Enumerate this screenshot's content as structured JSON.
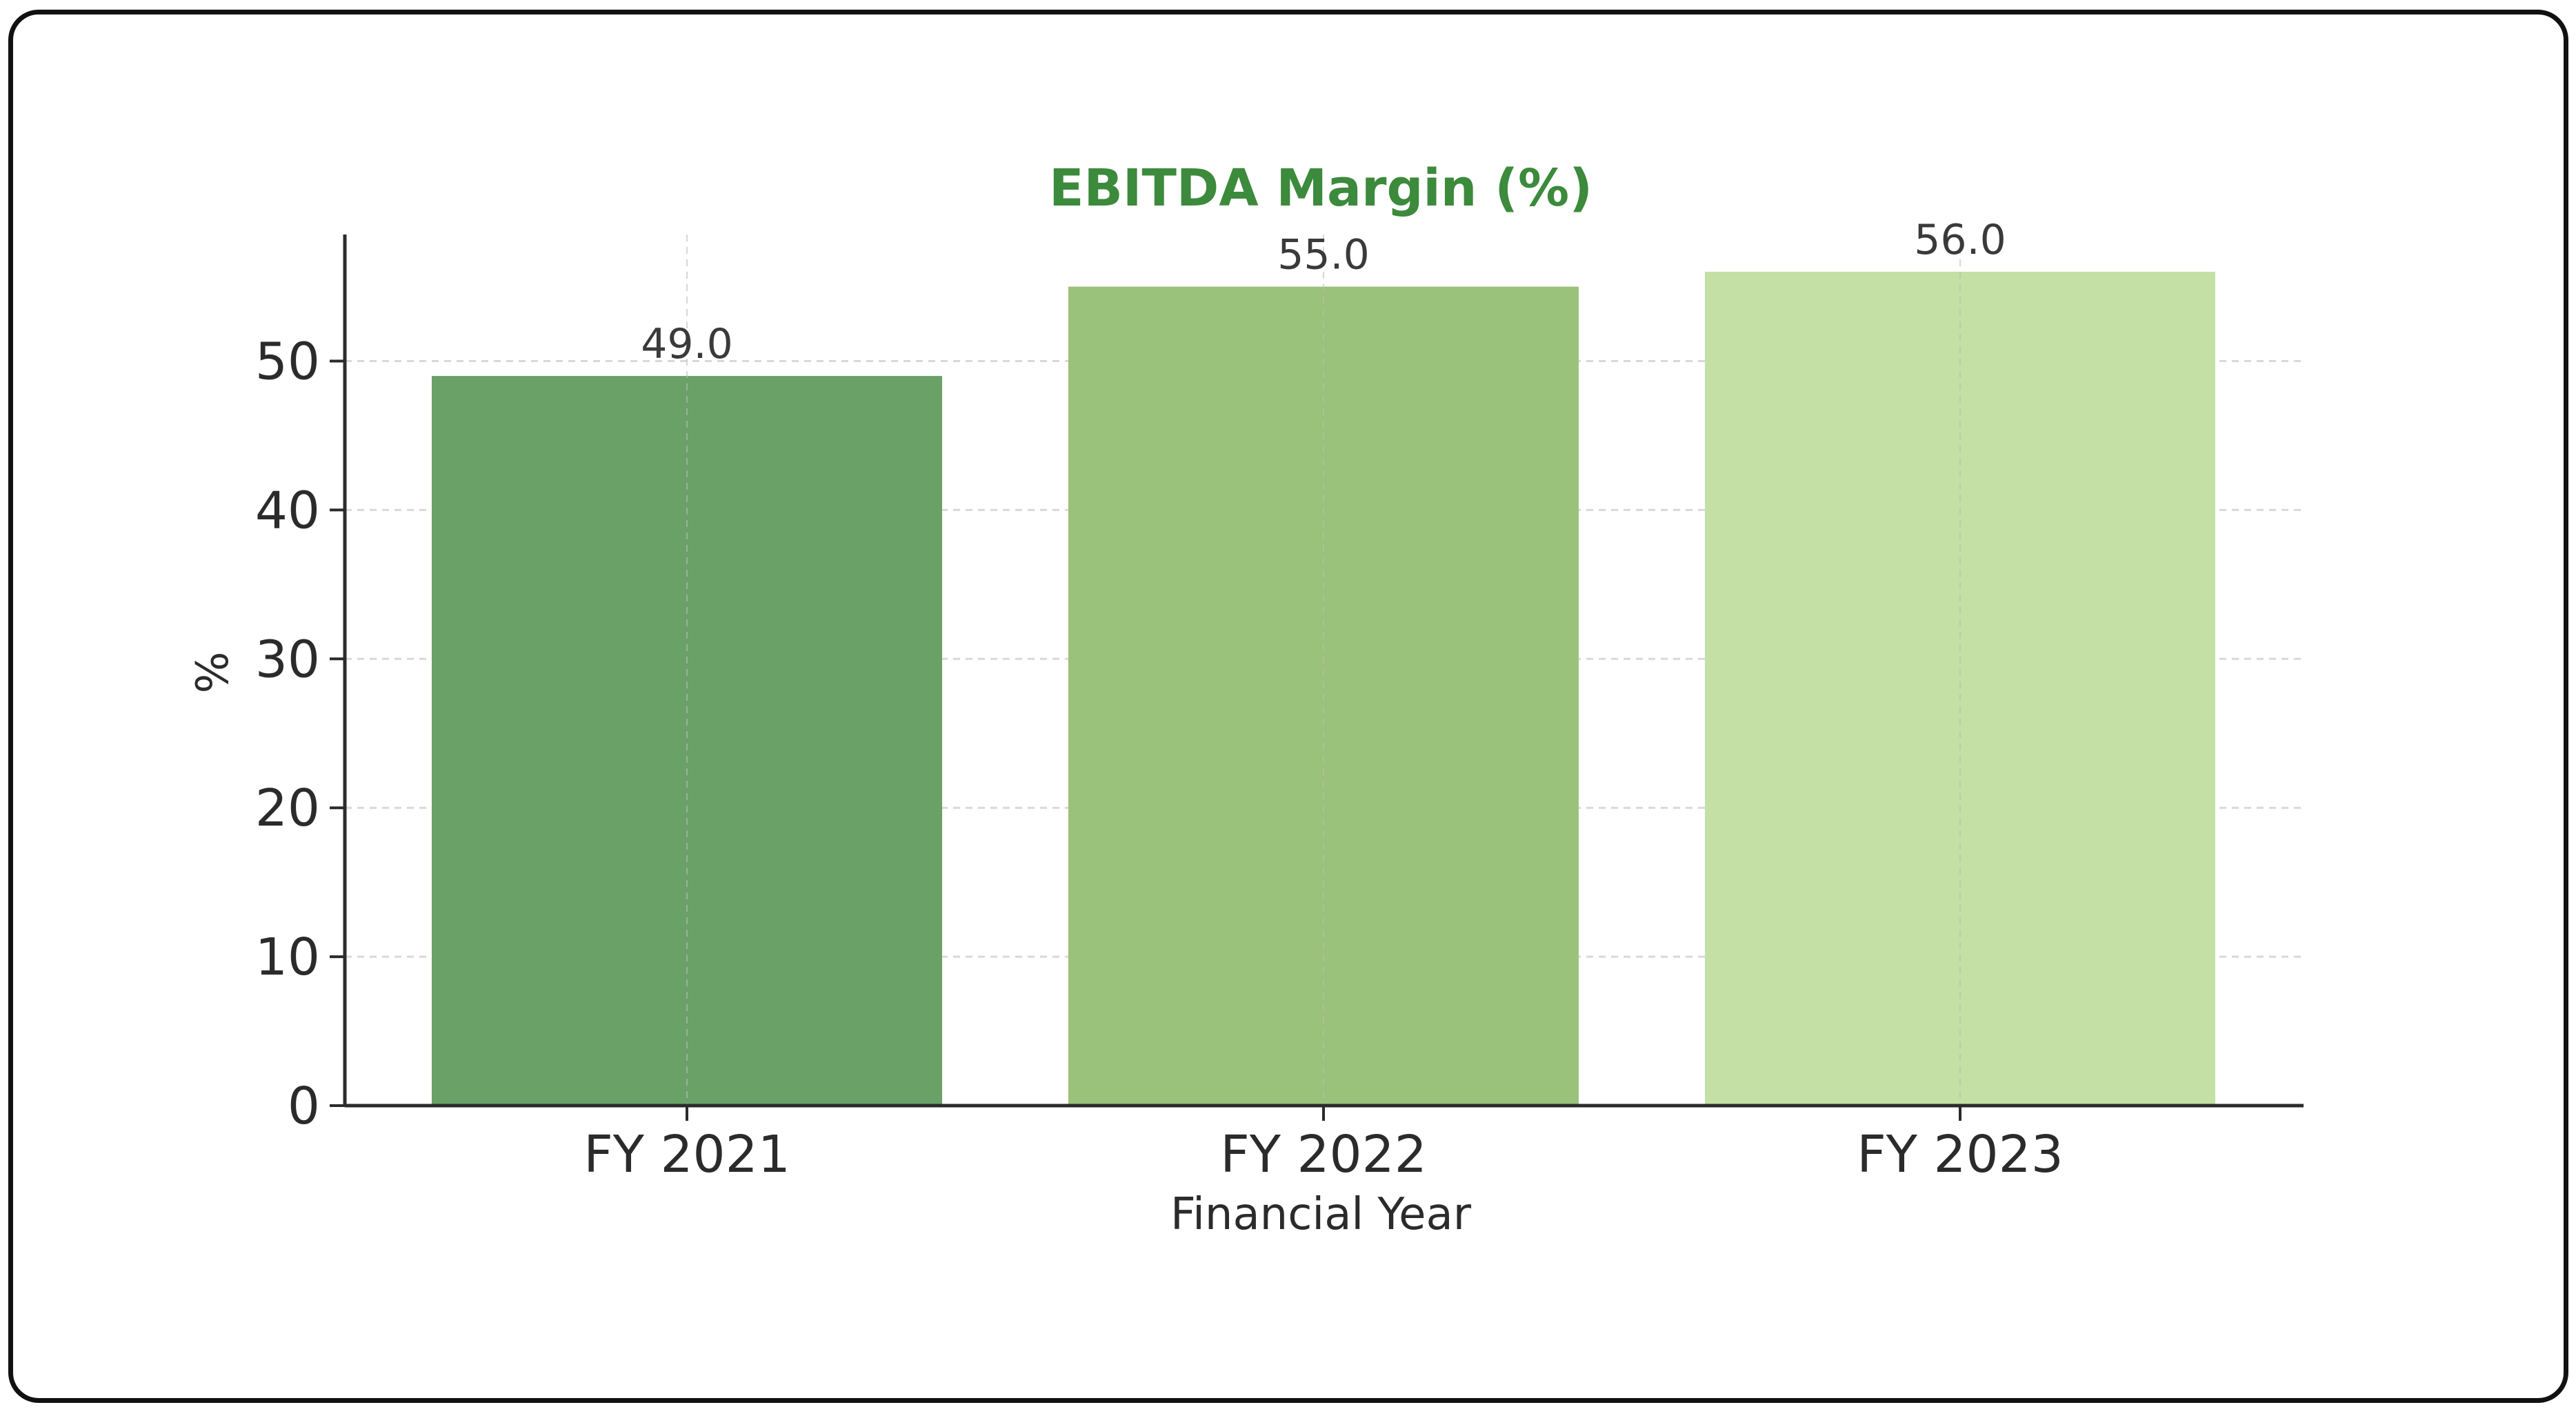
{
  "chart_data": {
    "type": "bar",
    "title": "EBITDA Margin (%)",
    "xlabel": "Financial Year",
    "ylabel": "%",
    "categories": [
      "FY 2021",
      "FY 2022",
      "FY 2023"
    ],
    "values": [
      49.0,
      55.0,
      56.0
    ],
    "value_labels": [
      "49.0",
      "55.0",
      "56.0"
    ],
    "ylim": [
      0,
      58.5
    ],
    "yticks": [
      0,
      10,
      20,
      30,
      40,
      50
    ],
    "grid": true,
    "legend": "none",
    "bar_colors": [
      "#6aa166",
      "#9ac27a",
      "#c4e0a4"
    ],
    "title_color": "#3c8a3c"
  }
}
